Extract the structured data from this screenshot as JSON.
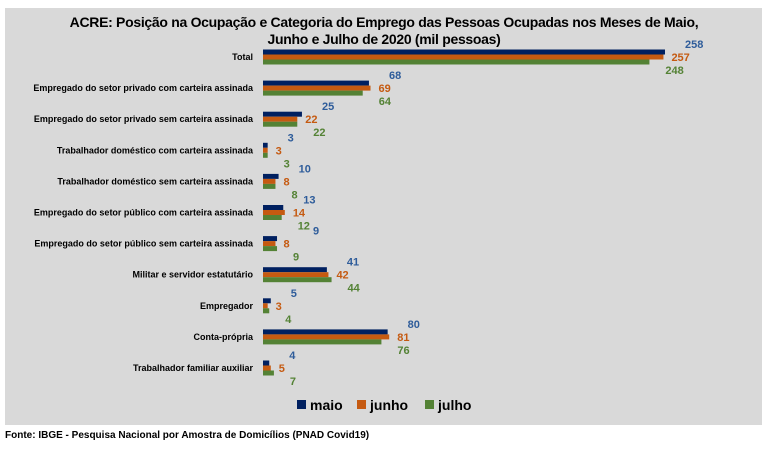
{
  "chart_data": {
    "type": "bar",
    "orientation": "horizontal",
    "title_line1": "ACRE: Posição na Ocupação e Categoria do Emprego das Pessoas Ocupadas nos Meses de Maio,",
    "title_line2": "Junho e Julho de 2020 (mil pessoas)",
    "categories": [
      "Total",
      "Empregado do setor privado com carteira assinada",
      "Empregado do setor privado sem carteira assinada",
      "Trabalhador doméstico com carteira assinada",
      "Trabalhador doméstico sem carteira assinada",
      "Empregado do setor público com carteira assinada",
      "Empregado do setor público sem carteira assinada",
      "Militar e servidor estatutário",
      "Empregador",
      "Conta-própria",
      "Trabalhador familiar auxiliar"
    ],
    "series": [
      {
        "name": "maio",
        "color": "#002060",
        "label_color": "#2e5c9a",
        "values": [
          258,
          68,
          25,
          3,
          10,
          13,
          9,
          41,
          5,
          80,
          4
        ]
      },
      {
        "name": "junho",
        "color": "#c55a11",
        "label_color": "#c55a11",
        "values": [
          257,
          69,
          22,
          3,
          8,
          14,
          8,
          42,
          3,
          81,
          5
        ]
      },
      {
        "name": "julho",
        "color": "#548235",
        "label_color": "#548235",
        "values": [
          248,
          64,
          22,
          3,
          8,
          12,
          9,
          44,
          4,
          76,
          7
        ]
      }
    ],
    "legend_position": "bottom",
    "grid": false,
    "background": "#d9d9d9"
  },
  "source": "Fonte: IBGE - Pesquisa Nacional por Amostra de Domicílios (PNAD Covid19)"
}
